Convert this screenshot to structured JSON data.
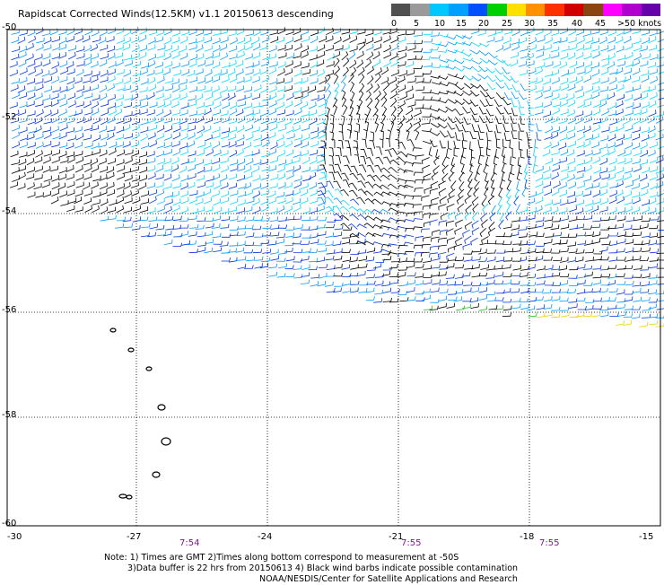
{
  "title": "Rapidscat Corrected Winds(12.5KM) v1.1 20150613 descending",
  "legend": {
    "labels": [
      "0",
      "5",
      "10",
      "15",
      "20",
      "25",
      "30",
      "35",
      "40",
      "45",
      ">50 knots"
    ],
    "colors": [
      "#505050",
      "#9a9a9a",
      "#00c8ff",
      "#00a0ff",
      "#0050ff",
      "#00d000",
      "#ffe000",
      "#ff9000",
      "#ff3000",
      "#d00000",
      "#8b4513",
      "#ff00ff",
      "#b000d0",
      "#6600aa"
    ]
  },
  "axes": {
    "y_labels": [
      "-50",
      "-52",
      "-54",
      "-56",
      "-58",
      "-60"
    ],
    "x_labels": [
      "-30",
      "-27",
      "-24",
      "-21",
      "-18",
      "-15"
    ],
    "lat_range": [
      -60,
      -50
    ],
    "lon_range": [
      -30,
      -15
    ]
  },
  "times": [
    "7:54",
    "7:55",
    "7:55"
  ],
  "notes": [
    "Note: 1) Times are GMT 2)Times along bottom correspond to measurement at -50S",
    "3)Data buffer is 22 hrs from 20150613 4) Black wind barbs indicate possible contamination",
    "NOAA/NESDIS/Center for Satellite Applications and Research"
  ]
}
